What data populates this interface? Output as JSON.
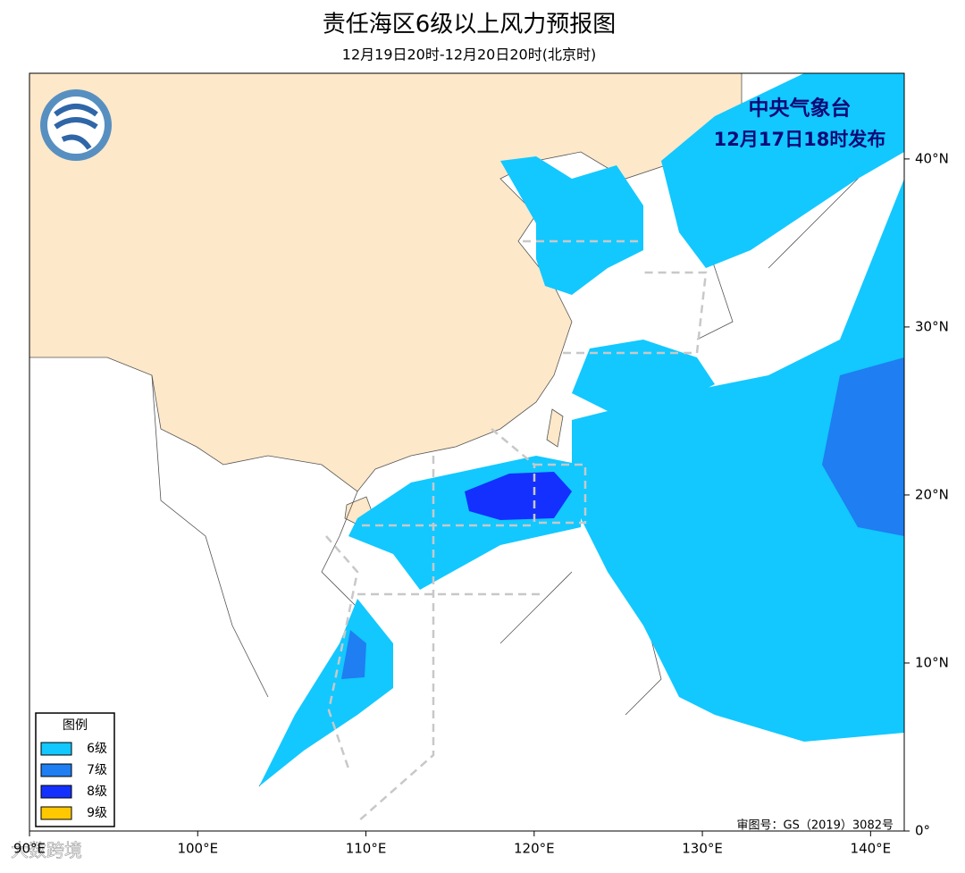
{
  "header": {
    "title": "责任海区6级以上风力预报图",
    "subtitle": "12月19日20时-12月20日20时(北京时)"
  },
  "issuer": {
    "agency": "中央气象台",
    "issued": "12月17日18时发布"
  },
  "legend": {
    "title": "图例",
    "items": [
      {
        "label": "6级",
        "color": "#12c8ff"
      },
      {
        "label": "7级",
        "color": "#1e7ef2"
      },
      {
        "label": "8级",
        "color": "#1430ff"
      },
      {
        "label": "9级",
        "color": "#ffc800"
      }
    ]
  },
  "map": {
    "xlim": [
      90,
      142
    ],
    "ylim": [
      0,
      45.1
    ],
    "xticks": [
      {
        "value": 90,
        "label": "90°E"
      },
      {
        "value": 100,
        "label": "100°E"
      },
      {
        "value": 110,
        "label": "110°E"
      },
      {
        "value": 120,
        "label": "120°E"
      },
      {
        "value": 130,
        "label": "130°E"
      },
      {
        "value": 140,
        "label": "140°E"
      }
    ],
    "yticks": [
      {
        "value": 0,
        "label": "0°"
      },
      {
        "value": 10,
        "label": "10°N"
      },
      {
        "value": 20,
        "label": "20°N"
      },
      {
        "value": 30,
        "label": "30°N"
      },
      {
        "value": 40,
        "label": "40°N"
      }
    ]
  },
  "footer": {
    "review_number": "审图号：GS（2019）3082号",
    "watermark": "大数跨境"
  }
}
